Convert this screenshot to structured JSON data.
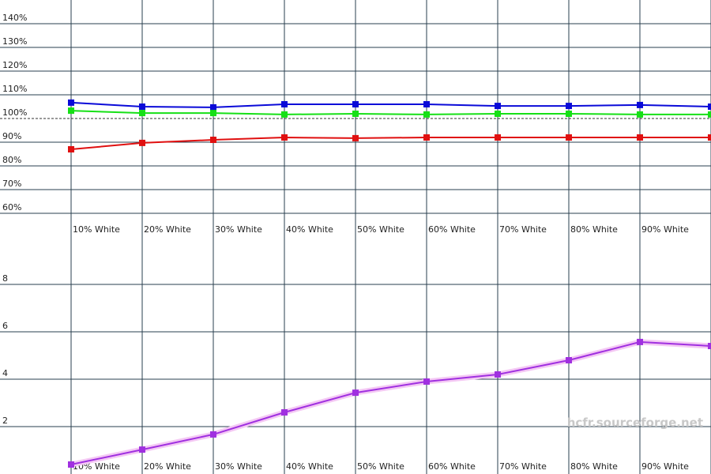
{
  "chart_data": [
    {
      "type": "line",
      "categories": [
        "10% White",
        "20% White",
        "30% White",
        "40% White",
        "50% White",
        "60% White",
        "70% White",
        "80% White",
        "90% White",
        null
      ],
      "series": [
        {
          "color": "#0a0ad8",
          "values": [
            106.7,
            105,
            104.7,
            106,
            106,
            106,
            105.3,
            105.3,
            105.7,
            105
          ]
        },
        {
          "color": "#16e016",
          "values": [
            103.3,
            102.3,
            102.3,
            101.7,
            102,
            101.7,
            102,
            102,
            101.7,
            101.7
          ]
        },
        {
          "color": "#e01010",
          "values": [
            87,
            89.7,
            91,
            92,
            91.7,
            92,
            92,
            92,
            92,
            92
          ]
        }
      ],
      "ylim": [
        60,
        150
      ],
      "yticks": [
        {
          "value": 60,
          "label": "60%"
        },
        {
          "value": 70,
          "label": "70%"
        },
        {
          "value": 80,
          "label": "80%"
        },
        {
          "value": 90,
          "label": "90%"
        },
        {
          "value": 100,
          "label": "100%"
        },
        {
          "value": 110,
          "label": "110%"
        },
        {
          "value": 120,
          "label": "120%"
        },
        {
          "value": 130,
          "label": "130%"
        },
        {
          "value": 140,
          "label": "140%"
        }
      ],
      "reference_line": 100,
      "grid": true
    },
    {
      "type": "line",
      "categories": [
        "10% White",
        "20% White",
        "30% White",
        "40% White",
        "50% White",
        "60% White",
        "70% White",
        "80% White",
        "90% White",
        null
      ],
      "series": [
        {
          "color": "#a030e0",
          "glow": "#f4c8f4",
          "values": [
            0.4,
            1.03,
            1.67,
            2.6,
            3.43,
            3.9,
            4.2,
            4.8,
            5.57,
            5.4
          ]
        }
      ],
      "ylim": [
        0,
        10
      ],
      "yticks": [
        2,
        4,
        6,
        8
      ],
      "grid": true,
      "watermark": "hcfr.sourceforge.net"
    }
  ]
}
